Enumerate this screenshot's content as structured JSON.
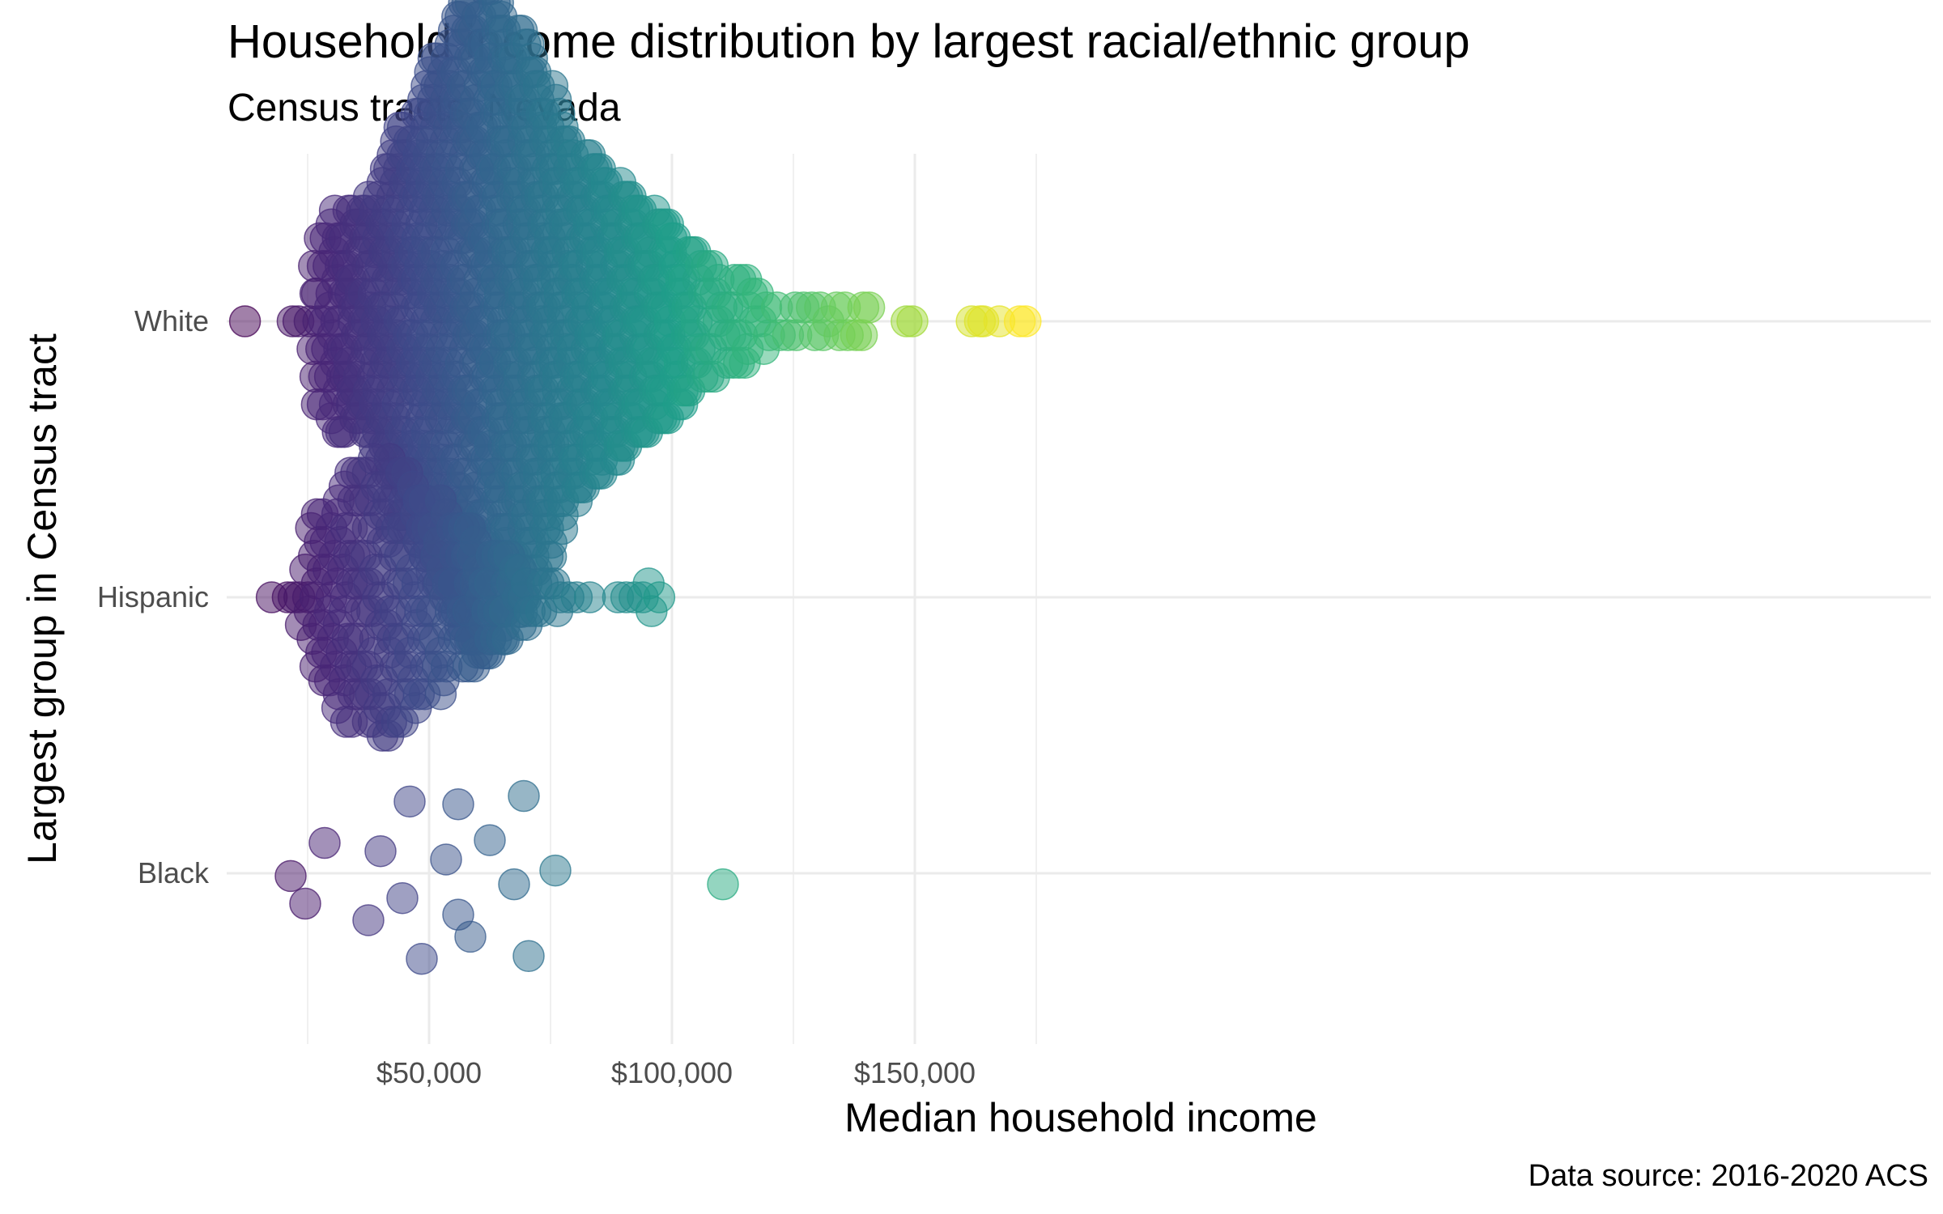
{
  "chart_data": {
    "type": "scatter",
    "subtype": "beeswarm",
    "title": "Household income distribution by largest racial/ethnic group",
    "subtitle": "Census tracts, Nevada",
    "xlabel": "Median household income",
    "ylabel": "Largest group in Census tract",
    "caption": "Data source: 2016-2020 ACS",
    "xlim": [
      0,
      180000
    ],
    "x_ticks": [
      50000,
      100000,
      150000
    ],
    "x_tick_labels": [
      "$50,000",
      "$100,000",
      "$150,000"
    ],
    "categories": [
      "Black",
      "Hispanic",
      "White"
    ],
    "color_scale": "viridis",
    "color_range": [
      13000,
      172000
    ],
    "point_alpha": 0.5,
    "grid": true,
    "legend": "none",
    "series": [
      {
        "category": "White",
        "x": [
          13000,
          21000,
          22500,
          26000,
          27500,
          29000,
          30500,
          31500,
          32500,
          33500,
          34500,
          35500,
          36500,
          37500,
          38500,
          39500,
          40500,
          41500,
          42500,
          43500,
          44500,
          45500,
          46500,
          47500,
          48500,
          49500,
          50500,
          51500,
          52500,
          53500,
          54500,
          55500,
          56500,
          57500,
          58500,
          59500,
          60500,
          61500,
          62500,
          63500,
          64500,
          65500,
          66500,
          67500,
          68500,
          69500,
          70500,
          71500,
          72500,
          73500,
          74500,
          75500,
          76500,
          77500,
          78500,
          79500,
          80500,
          81500,
          82500,
          83500,
          84500,
          85500,
          86500,
          87500,
          88500,
          89500,
          90500,
          91500,
          92500,
          93500,
          94500,
          95500,
          96500,
          97500,
          98500,
          99500,
          100500,
          101500,
          102500,
          103500,
          104500,
          106000,
          107500,
          109000,
          110500,
          112000,
          113500,
          115000,
          116500,
          118000,
          120000,
          122500,
          124500,
          126500,
          128500,
          130500,
          132500,
          134500,
          136500,
          138500,
          140000,
          148000,
          149500,
          162000,
          164000,
          165000,
          166500,
          171000,
          172500
        ],
        "count": [
          1,
          1,
          1,
          5,
          7,
          7,
          8,
          9,
          9,
          9,
          8,
          8,
          9,
          9,
          10,
          11,
          12,
          12,
          13,
          14,
          15,
          15,
          16,
          16,
          17,
          18,
          19,
          20,
          20,
          21,
          22,
          23,
          23,
          24,
          24,
          24,
          25,
          25,
          25,
          24,
          24,
          23,
          22,
          22,
          22,
          21,
          21,
          20,
          19,
          18,
          18,
          17,
          16,
          15,
          14,
          14,
          13,
          13,
          13,
          12,
          12,
          12,
          11,
          11,
          11,
          10,
          10,
          10,
          9,
          9,
          9,
          9,
          8,
          8,
          8,
          8,
          7,
          7,
          6,
          6,
          6,
          5,
          5,
          5,
          4,
          4,
          4,
          4,
          3,
          3,
          2,
          2,
          2,
          2,
          2,
          2,
          1,
          2,
          2,
          2,
          2,
          1,
          1,
          1,
          1,
          1,
          1,
          1,
          1
        ]
      },
      {
        "category": "Hispanic",
        "x": [
          18500,
          20000,
          21500,
          23000,
          24500,
          26000,
          27500,
          29000,
          30500,
          32000,
          33500,
          35000,
          36500,
          38000,
          39500,
          41000,
          42500,
          44000,
          45500,
          47000,
          48500,
          50000,
          51500,
          53000,
          54500,
          56000,
          57500,
          59000,
          60500,
          62000,
          63500,
          65000,
          66500,
          68000,
          69500,
          71000,
          72500,
          74000,
          75500,
          77000,
          79000,
          81000,
          84000,
          88000,
          90000,
          92000,
          94000,
          95500,
          98000
        ],
        "count": [
          1,
          1,
          1,
          1,
          3,
          6,
          7,
          7,
          8,
          9,
          10,
          10,
          10,
          10,
          11,
          11,
          10,
          10,
          10,
          9,
          8,
          8,
          8,
          7,
          6,
          6,
          6,
          6,
          5,
          4,
          4,
          4,
          4,
          3,
          3,
          2,
          2,
          2,
          2,
          1,
          1,
          1,
          1,
          1,
          1,
          1,
          1,
          2,
          1
        ]
      },
      {
        "category": "Black",
        "points": [
          {
            "x": 21500,
            "offset": -0.01
          },
          {
            "x": 24500,
            "offset": -0.11
          },
          {
            "x": 28500,
            "offset": 0.11
          },
          {
            "x": 37500,
            "offset": -0.17
          },
          {
            "x": 40000,
            "offset": 0.08
          },
          {
            "x": 44500,
            "offset": -0.09
          },
          {
            "x": 46000,
            "offset": 0.26
          },
          {
            "x": 48500,
            "offset": -0.31
          },
          {
            "x": 53500,
            "offset": 0.05
          },
          {
            "x": 56000,
            "offset": 0.25
          },
          {
            "x": 56000,
            "offset": -0.15
          },
          {
            "x": 58500,
            "offset": -0.23
          },
          {
            "x": 62500,
            "offset": 0.12
          },
          {
            "x": 67500,
            "offset": -0.04
          },
          {
            "x": 69500,
            "offset": 0.28
          },
          {
            "x": 70500,
            "offset": -0.3
          },
          {
            "x": 76000,
            "offset": 0.01
          },
          {
            "x": 110500,
            "offset": -0.04
          }
        ]
      }
    ]
  }
}
